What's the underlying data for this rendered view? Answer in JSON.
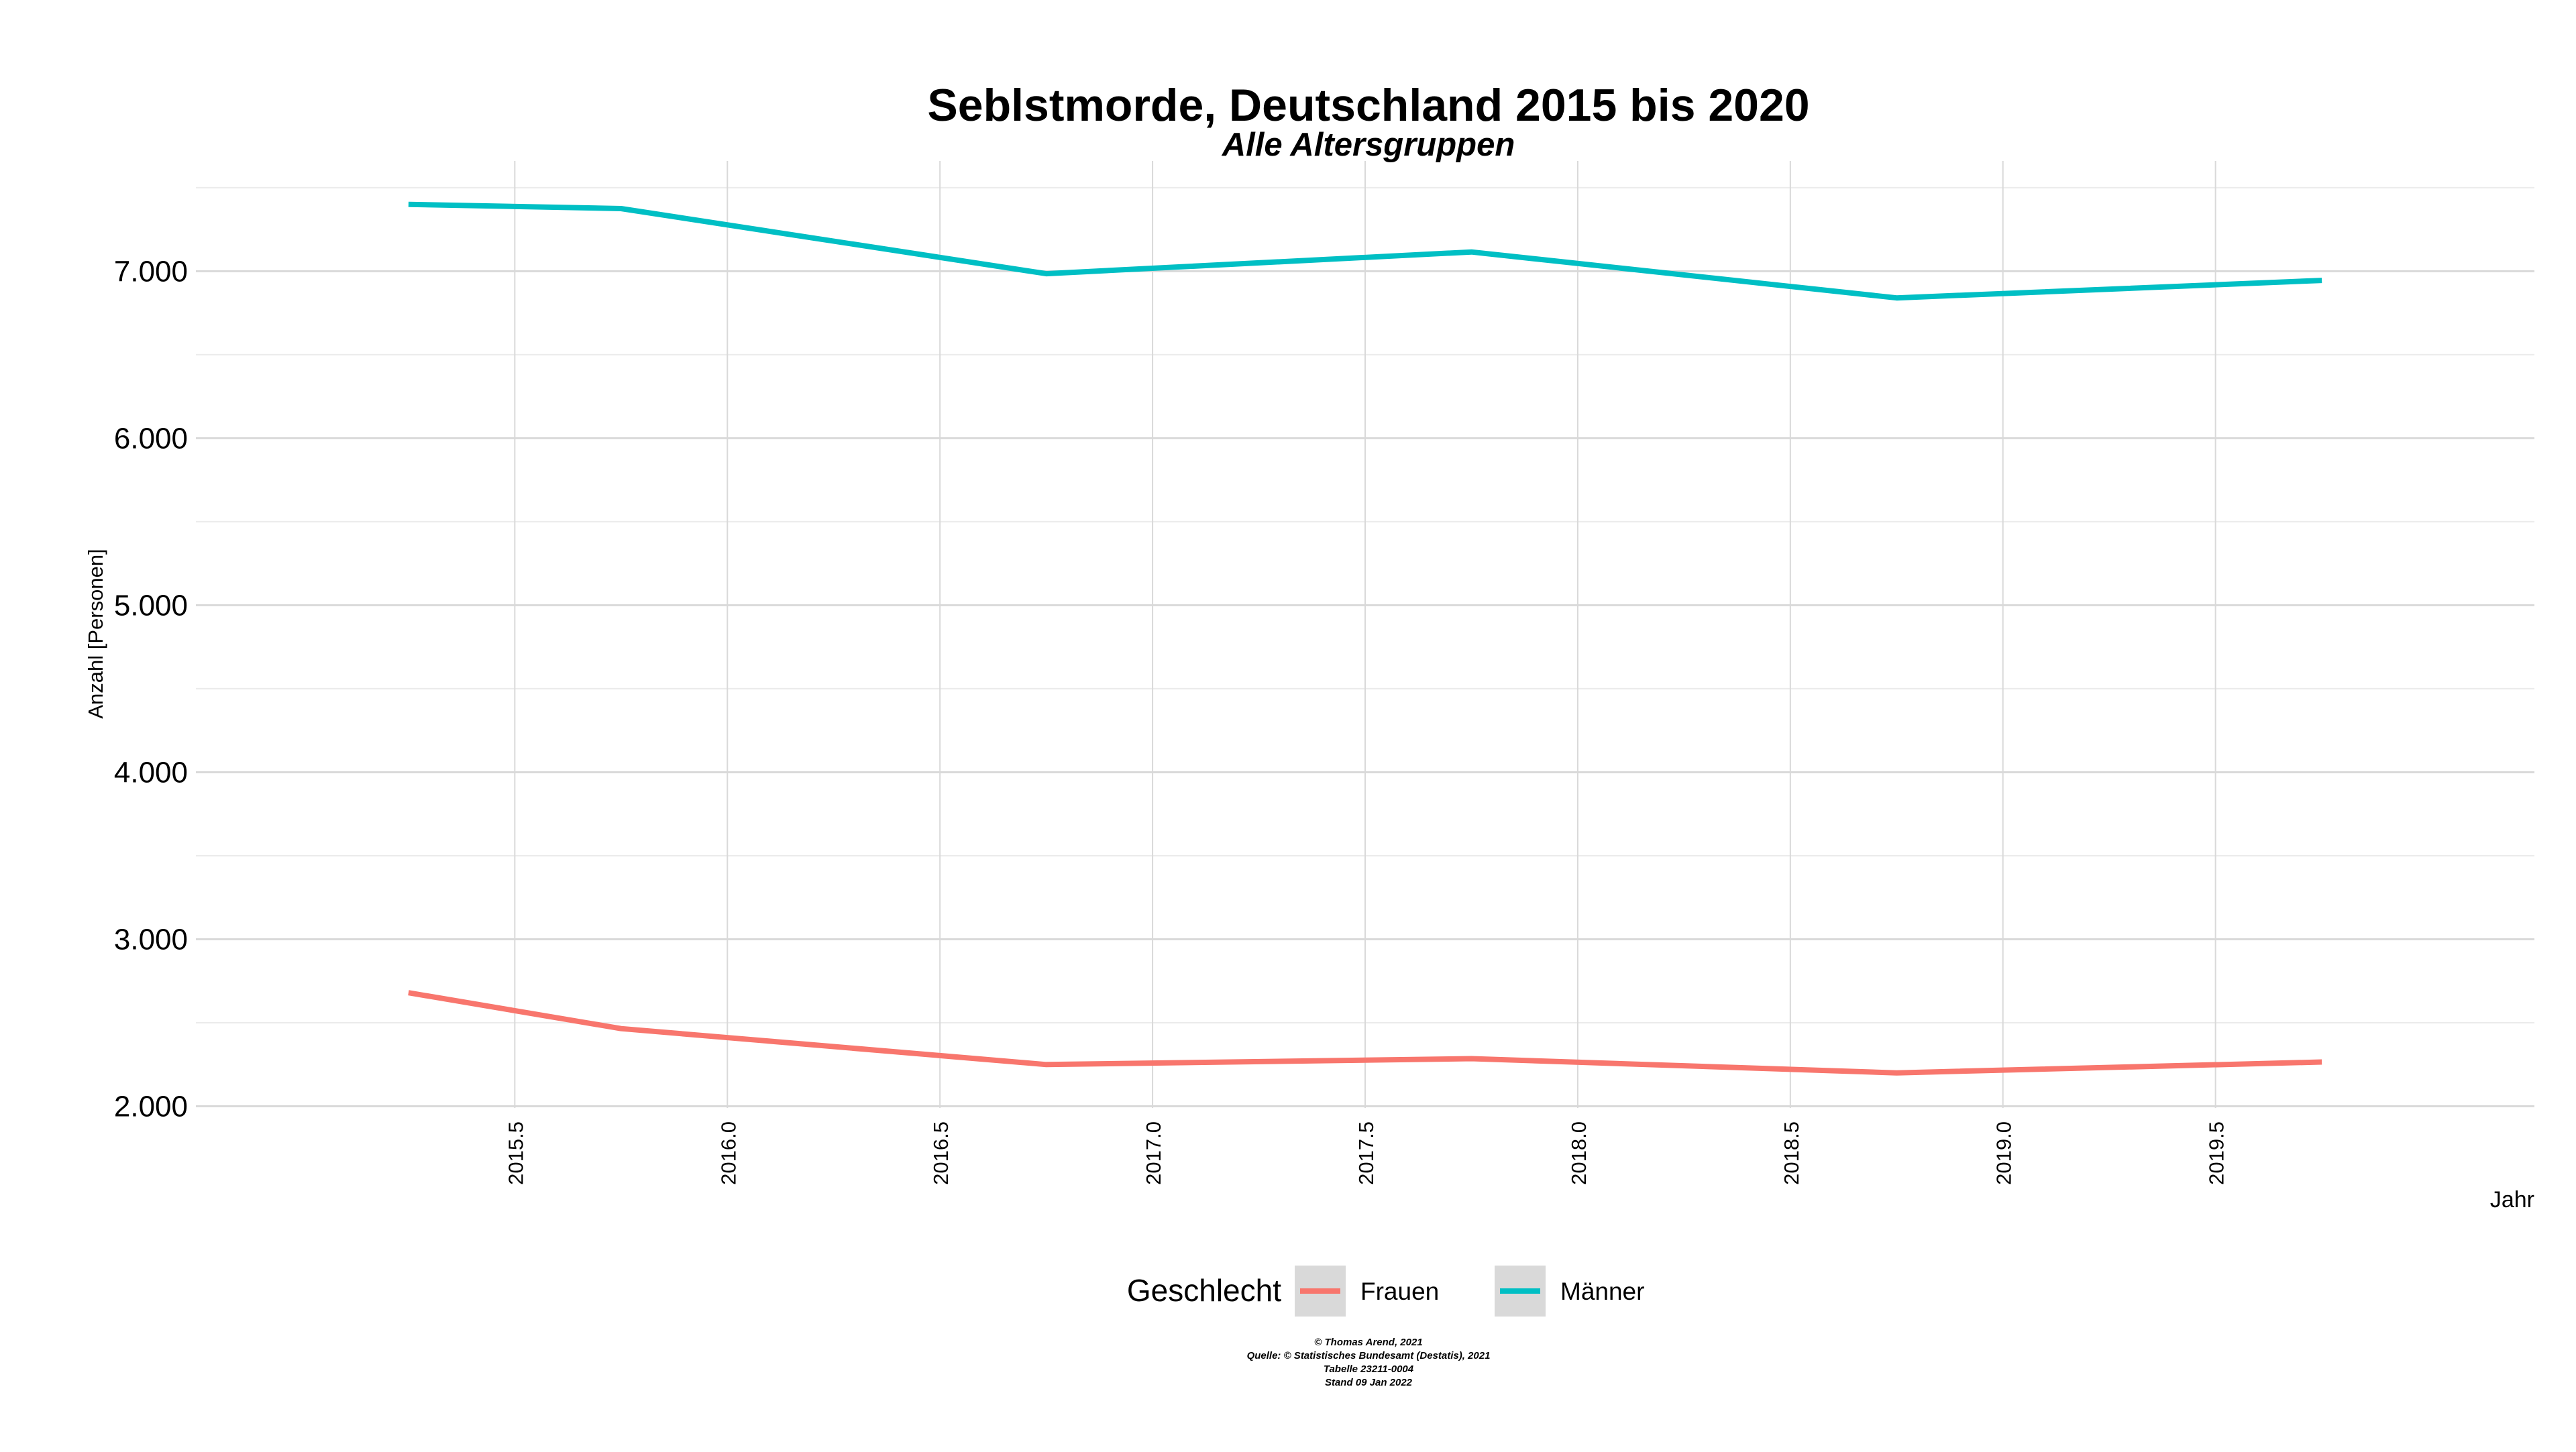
{
  "chart_data": {
    "type": "line",
    "title": "Seblstmorde, Deutschland  2015 bis 2020",
    "subtitle": "Alle Altersgruppen",
    "xlabel": "Jahr",
    "ylabel": "Anzahl [Personen]",
    "xlim": [
      2014.75,
      2020.25
    ],
    "ylim": [
      1990,
      7660
    ],
    "x_ticks": [
      2015.5,
      2016.0,
      2016.5,
      2017.0,
      2017.5,
      2018.0,
      2018.5,
      2019.0,
      2019.5
    ],
    "x_tick_labels": [
      "2015.5",
      "2016.0",
      "2016.5",
      "2017.0",
      "2017.5",
      "2018.0",
      "2018.5",
      "2019.0",
      "2019.5"
    ],
    "y_ticks": [
      2000,
      3000,
      4000,
      5000,
      6000,
      7000
    ],
    "y_tick_labels": [
      "2.000",
      "3.000",
      "4.000",
      "5.000",
      "6.000",
      "7.000"
    ],
    "x_minor_ticks": [
      2015.25,
      2015.75,
      2016.25,
      2016.75,
      2017.25,
      2017.75,
      2018.25,
      2018.75,
      2019.25,
      2019.75
    ],
    "y_minor_ticks": [
      2500,
      3500,
      4500,
      5500,
      6500,
      7500
    ],
    "grid": true,
    "legend_title": "Geschlecht",
    "legend_position": "bottom",
    "series": [
      {
        "name": "Frauen",
        "color": "#F8766D",
        "x": [
          2015.25,
          2015.75,
          2016.75,
          2017.75,
          2018.75,
          2019.75
        ],
        "values": [
          2680,
          2465,
          2250,
          2285,
          2200,
          2265
        ]
      },
      {
        "name": "Männer",
        "color": "#00BFC4",
        "x": [
          2015.25,
          2015.75,
          2016.75,
          2017.75,
          2018.75,
          2019.75
        ],
        "values": [
          7400,
          7375,
          6985,
          7115,
          6840,
          6945
        ]
      }
    ],
    "caption_lines": [
      "© Thomas Arend, 2021",
      "Quelle: © Statistisches Bundesamt (Destatis), 2021",
      "Tabelle 23211-0004",
      "Stand 09 Jan 2022"
    ]
  },
  "colors": {
    "grid_major": "#d9d9d9",
    "grid_minor": "#ebebeb",
    "text": "#000000",
    "legend_key_bg": "#d9d9d9"
  }
}
